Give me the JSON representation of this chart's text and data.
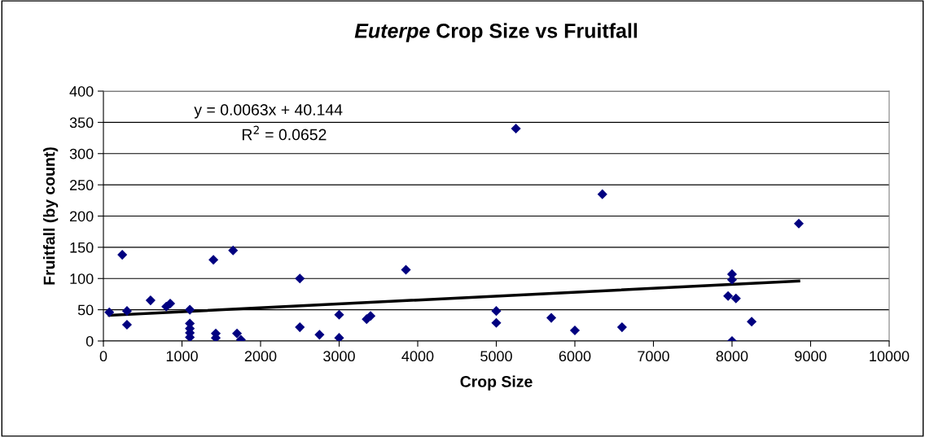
{
  "chart_data": {
    "type": "scatter",
    "title": "Euterpe Crop Size vs Fruitfall",
    "xlabel": "Crop Size",
    "ylabel": "Fruitfall (by count)",
    "xlim": [
      0,
      10000
    ],
    "xticks": [
      0,
      1000,
      2000,
      3000,
      4000,
      5000,
      6000,
      7000,
      8000,
      9000,
      10000
    ],
    "ylim": [
      0,
      400
    ],
    "yticks": [
      0,
      50,
      100,
      150,
      200,
      250,
      300,
      350,
      400
    ],
    "grid": "y",
    "legend": false,
    "annotations": [
      "y = 0.0063x + 40.144",
      "R$^{2}$ = 0.0652"
    ],
    "series": [
      {
        "color": "#000080",
        "marker": "diamond",
        "x": [
          75,
          240,
          300,
          300,
          600,
          800,
          850,
          1100,
          1100,
          1100,
          1100,
          1100,
          1400,
          1430,
          1430,
          1650,
          1700,
          1750,
          2500,
          2500,
          2750,
          3000,
          3000,
          3350,
          3400,
          3850,
          5000,
          5000,
          5250,
          5700,
          6000,
          6350,
          6600,
          7950,
          8000,
          8000,
          8050,
          8000,
          8250,
          8850
        ],
        "values": [
          46,
          138,
          48,
          26,
          65,
          55,
          60,
          50,
          28,
          20,
          13,
          6,
          130,
          12,
          5,
          145,
          12,
          2,
          100,
          22,
          10,
          42,
          5,
          35,
          40,
          114,
          48,
          29,
          340,
          37,
          17,
          235,
          22,
          72,
          98,
          107,
          68,
          0,
          31,
          188
        ]
      },
      {
        "type": "line",
        "color": "#000000",
        "marker": "none",
        "x": [
          75,
          8850
        ],
        "values": [
          41,
          96
        ]
      }
    ]
  }
}
